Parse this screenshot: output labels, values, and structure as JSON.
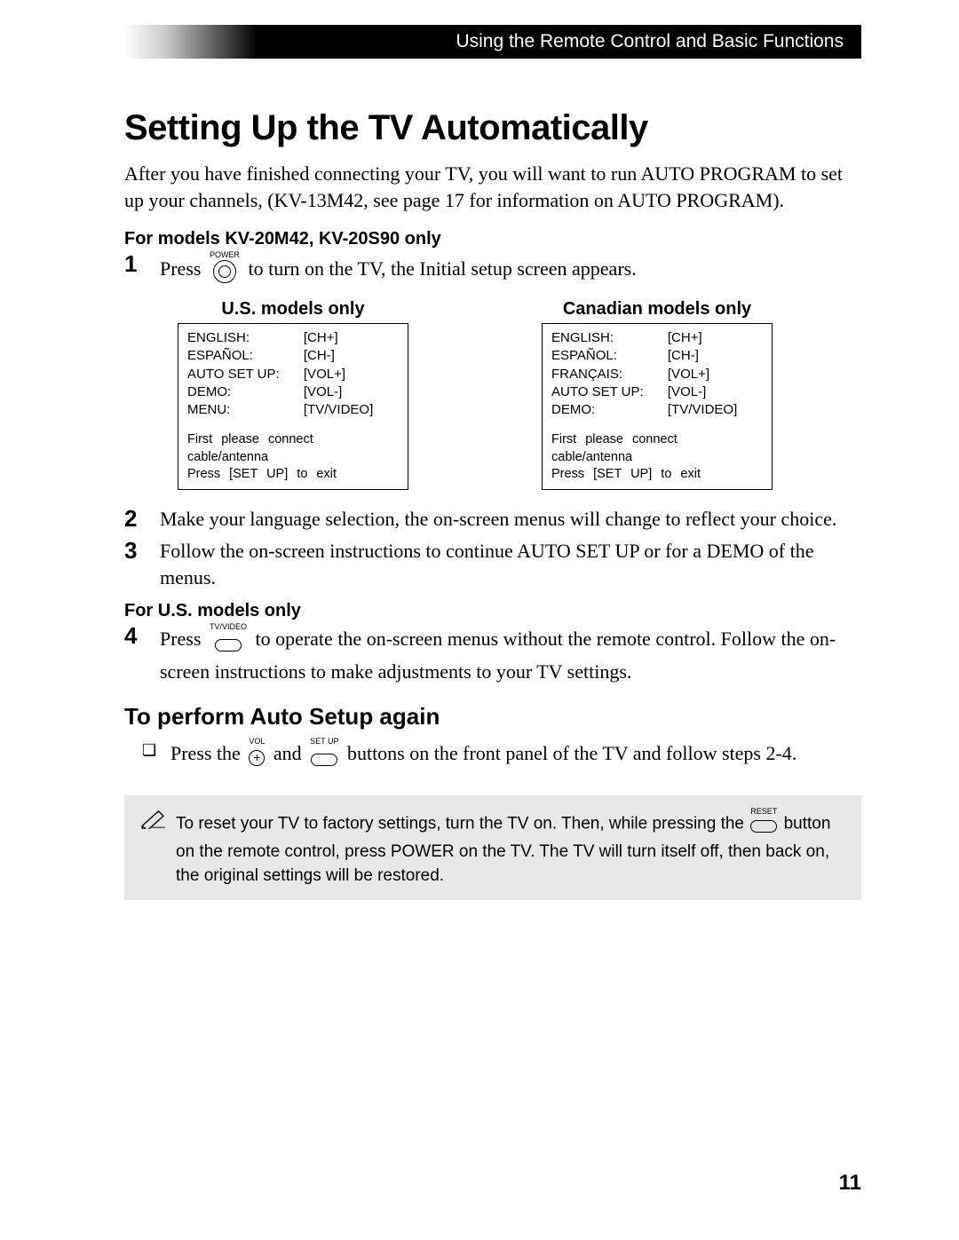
{
  "header": "Using the Remote Control and Basic Functions",
  "title": "Setting Up the TV Automatically",
  "intro": "After you have finished connecting your TV, you will want to run AUTO PROGRAM to set up your channels, (KV-13M42, see page 17 for information on AUTO PROGRAM).",
  "section_a_heading": "For models KV-20M42, KV-20S90 only",
  "step1_pre": "Press",
  "power_label": "POWER",
  "step1_post": "to turn on the TV, the Initial setup screen appears.",
  "us_title": "U.S. models only",
  "ca_title": "Canadian models only",
  "us_rows": [
    [
      "ENGLISH:",
      "[CH+]"
    ],
    [
      "ESPAÑOL:",
      "[CH-]"
    ],
    [
      "AUTO SET UP:",
      "[VOL+]"
    ],
    [
      "DEMO:",
      "[VOL-]"
    ],
    [
      "MENU:",
      "[TV/VIDEO]"
    ]
  ],
  "ca_rows": [
    [
      "ENGLISH:",
      "[CH+]"
    ],
    [
      "ESPAÑOL:",
      "[CH-]"
    ],
    [
      "FRANÇAIS:",
      "[VOL+]"
    ],
    [
      "AUTO SET UP:",
      "[VOL-]"
    ],
    [
      "DEMO:",
      "[TV/VIDEO]"
    ]
  ],
  "menu_footer1": "First please connect cable/antenna",
  "menu_footer2": "Press [SET UP] to exit",
  "step2": "Make your language selection, the on-screen menus will change to reflect your choice.",
  "step3": "Follow the on-screen instructions to continue AUTO SET UP or for a DEMO of the menus.",
  "section_b_heading": "For U.S. models only",
  "step4_pre": "Press",
  "tvvideo_label": "TV/VIDEO",
  "step4_post": "to operate the on-screen menus without the remote control. Follow the on-screen instructions to make adjustments to your TV settings.",
  "h2": "To perform Auto Setup again",
  "auto_again_pre": "Press the",
  "vol_label": "VOL",
  "auto_again_mid": "and",
  "setup_label": "SET UP",
  "auto_again_post": "buttons on the front panel of the TV and follow steps 2-4.",
  "note_pre": "To reset your TV to factory settings, turn the TV on. Then, while pressing the",
  "reset_label": "RESET",
  "note_post": "button on the remote control, press POWER on the TV. The TV will turn itself off, then back on, the original settings will be restored.",
  "page_number": "11",
  "step_labels": {
    "s1": "1",
    "s2": "2",
    "s3": "3",
    "s4": "4"
  }
}
